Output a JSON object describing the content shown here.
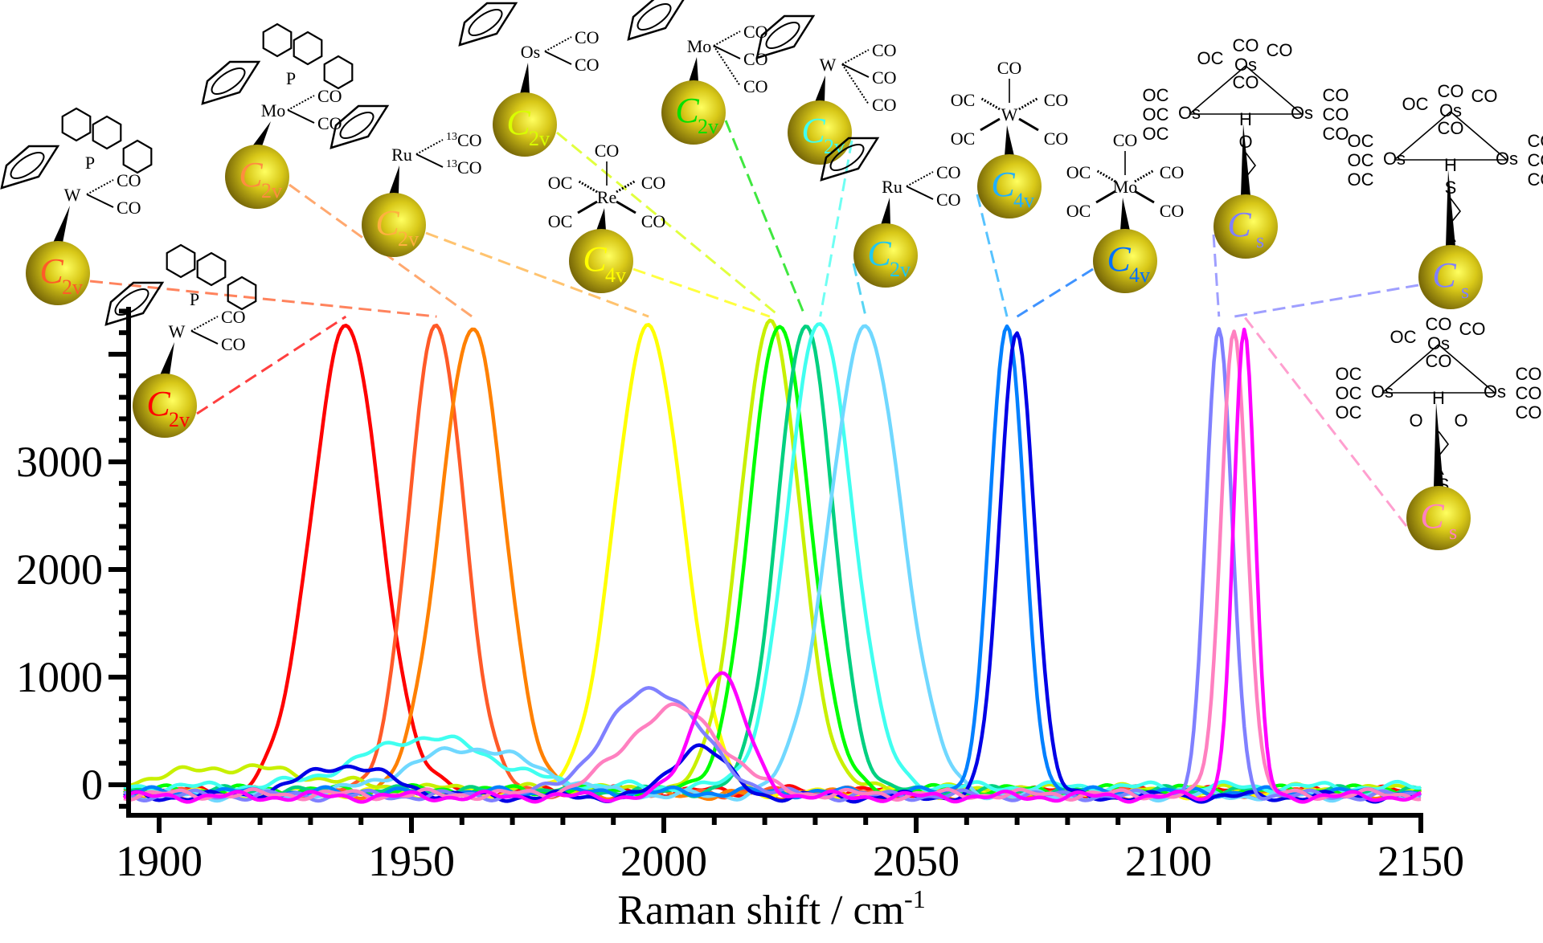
{
  "chart_data": {
    "type": "line",
    "title": "",
    "xlabel": "Raman shift / cm",
    "xlabel_superscript": "-1",
    "ylabel": "",
    "xlim": [
      1893,
      2150
    ],
    "ylim": [
      -350,
      4420
    ],
    "x_major_ticks": [
      1900,
      1950,
      2000,
      2050,
      2100,
      2150
    ],
    "x_minor_step": 10,
    "y_major_ticks": [
      0,
      1000,
      2000,
      3000
    ],
    "y_major_tick_marks": [
      0,
      1000,
      2000,
      3000,
      4000
    ],
    "y_minor_step": 200,
    "grid": false,
    "legend": "none",
    "series": [
      {
        "name": "CpW(CO)2(PCy3) on particle",
        "symmetry": "C2v",
        "color": "#ff0000",
        "peak_x": 1937,
        "peak_y": 4320,
        "fwhm": 16
      },
      {
        "name": "CpW(CO)2(PPh3) on particle",
        "symmetry": "C2v",
        "color": "#ff5a28",
        "peak_x": 1955,
        "peak_y": 4320,
        "fwhm": 13
      },
      {
        "name": "CpMo(CO)2(PPh3) on particle",
        "symmetry": "C2v",
        "color": "#ff8000",
        "peak_x": 1962,
        "peak_y": 4320,
        "fwhm": 15
      },
      {
        "name": "CpRu(13CO)2 on particle",
        "symmetry": "C2v",
        "color": "#ffff00",
        "peak_x": 1997,
        "peak_y": 4320,
        "fwhm": 16
      },
      {
        "name": "Re(CO)5 on particle",
        "symmetry": "C4v",
        "color": "#c8f000",
        "peak_x": 2021,
        "peak_y": 4320,
        "fwhm": 14
      },
      {
        "name": "CpOs(CO)2 on particle",
        "symmetry": "C2v",
        "color": "#00ff00",
        "peak_x": 2023,
        "peak_y": 4320,
        "fwhm": 14
      },
      {
        "name": "CpMo(CO)3 on particle",
        "symmetry": "C2v",
        "color": "#00d080",
        "peak_x": 2028,
        "peak_y": 4320,
        "fwhm": 13
      },
      {
        "name": "CpW(CO)3 on particle",
        "symmetry": "C2v",
        "color": "#40fff0",
        "peak_x": 2031,
        "peak_y": 4320,
        "fwhm": 15
      },
      {
        "name": "CpRu(CO)2 on particle",
        "symmetry": "C2v",
        "color": "#70d8ff",
        "peak_x": 2040,
        "peak_y": 4320,
        "fwhm": 17
      },
      {
        "name": "W(CO)5 on particle",
        "symmetry": "C4v",
        "color": "#0080ff",
        "peak_x": 2068,
        "peak_y": 4320,
        "fwhm": 8
      },
      {
        "name": "Mo(CO)5 on particle",
        "symmetry": "C4v",
        "color": "#0000e6",
        "peak_x": 2070,
        "peak_y": 4320,
        "fwhm": 8
      },
      {
        "name": "Os3(CO)10(μ-H)(μ-OCH2CH2S) on particle",
        "symmetry": "Cs",
        "color": "#8080ff",
        "peak_x": 2110,
        "peak_y": 4320,
        "fwhm": 6
      },
      {
        "name": "Os3(CO)10(μ-H)(μ-O2CCH2CH2S) on particle",
        "symmetry": "Cs",
        "color": "#ff80c0",
        "peak_x": 2113,
        "peak_y": 4320,
        "fwhm": 6
      },
      {
        "name": "Os3(CO)10(μ-H)(μ-SCH2CH2S) on particle",
        "symmetry": "Cs",
        "color": "#ff00ff",
        "peak_x": 2115,
        "peak_y": 4320,
        "fwhm": 5
      }
    ],
    "minor_bands": [
      {
        "series": "CpRu(CO)2 (light violet)",
        "color": "#8080ff",
        "peak_x": 1998,
        "peak_y": 1000,
        "fwhm": 22
      },
      {
        "series": "magenta",
        "color": "#ff00ff",
        "peak_x": 2011,
        "peak_y": 1150,
        "fwhm": 12
      },
      {
        "series": "pink",
        "color": "#ff80c0",
        "peak_x": 2002,
        "peak_y": 800,
        "fwhm": 22
      },
      {
        "series": "blue",
        "color": "#0000e6",
        "peak_x": 2007,
        "peak_y": 480,
        "fwhm": 12
      },
      {
        "series": "blue",
        "color": "#0000e6",
        "peak_x": 1937,
        "peak_y": 290,
        "fwhm": 20
      },
      {
        "series": "cyan",
        "color": "#40fff0",
        "peak_x": 1953,
        "peak_y": 460,
        "fwhm": 30
      },
      {
        "series": "light blue",
        "color": "#70d8ff",
        "peak_x": 1962,
        "peak_y": 440,
        "fwhm": 30
      },
      {
        "series": "yellow-green",
        "color": "#c8f000",
        "peak_x": 1915,
        "peak_y": 200,
        "fwhm": 35
      }
    ]
  },
  "molecules": [
    {
      "id": "cpw-pph3",
      "metal": "W",
      "ligands": [
        "P",
        "CO",
        "CO"
      ],
      "phosphine": "PPh3",
      "symmetry_main": "C",
      "symmetry_sub": "2v",
      "symmetry_color": "#ff5a28"
    },
    {
      "id": "cpw-pcy3",
      "metal": "W",
      "ligands": [
        "P",
        "CO",
        "CO"
      ],
      "phosphine": "PCy3",
      "symmetry_main": "C",
      "symmetry_sub": "2v",
      "symmetry_color": "#ff0000"
    },
    {
      "id": "cpmo-pph3",
      "metal": "Mo",
      "ligands": [
        "P",
        "CO",
        "CO"
      ],
      "phosphine": "PPh3",
      "symmetry_main": "C",
      "symmetry_sub": "2v",
      "symmetry_color": "#ff8c40"
    },
    {
      "id": "cpru-13co",
      "metal": "Ru",
      "ligands": [
        "13CO",
        "13CO"
      ],
      "symmetry_main": "C",
      "symmetry_sub": "2v",
      "symmetry_color": "#ffb040"
    },
    {
      "id": "cpos",
      "metal": "Os",
      "ligands": [
        "CO",
        "CO"
      ],
      "symmetry_main": "C",
      "symmetry_sub": "2v",
      "symmetry_color": "#d8ff00"
    },
    {
      "id": "re-co5",
      "metal": "Re",
      "ligands": [
        "CO",
        "OC",
        "CO",
        "OC",
        "CO"
      ],
      "symmetry_main": "C",
      "symmetry_sub": "4v",
      "symmetry_color": "#ffff00"
    },
    {
      "id": "cpmo-co3",
      "metal": "Mo",
      "ligands": [
        "CO",
        "CO",
        "CO"
      ],
      "symmetry_main": "C",
      "symmetry_sub": "2v",
      "symmetry_color": "#00e000"
    },
    {
      "id": "cpw-co3",
      "metal": "W",
      "ligands": [
        "CO",
        "CO",
        "CO"
      ],
      "symmetry_main": "C",
      "symmetry_sub": "2v",
      "symmetry_color": "#40fff0"
    },
    {
      "id": "cpru-co2",
      "metal": "Ru",
      "ligands": [
        "CO",
        "CO"
      ],
      "symmetry_main": "C",
      "symmetry_sub": "2v",
      "symmetry_color": "#20c8f0"
    },
    {
      "id": "w-co5",
      "metal": "W",
      "ligands": [
        "CO",
        "OC",
        "CO",
        "OC",
        "CO"
      ],
      "symmetry_main": "C",
      "symmetry_sub": "4v",
      "symmetry_color": "#20b0ff"
    },
    {
      "id": "mo-co5",
      "metal": "Mo",
      "ligands": [
        "CO",
        "OC",
        "CO",
        "OC",
        "CO"
      ],
      "symmetry_main": "C",
      "symmetry_sub": "4v",
      "symmetry_color": "#0070ff"
    },
    {
      "id": "os3-o",
      "metal": "Os",
      "bridge": "O",
      "linker": "S",
      "symmetry_main": "C",
      "symmetry_sub": "s",
      "symmetry_color": "#8080ff"
    },
    {
      "id": "os3-s",
      "metal": "Os",
      "bridge": "S",
      "linker": "S",
      "symmetry_main": "C",
      "symmetry_sub": "s",
      "symmetry_color": "#8080ff"
    },
    {
      "id": "os3-o2c",
      "metal": "Os",
      "bridge": "O O",
      "linker": "S",
      "symmetry_main": "C",
      "symmetry_sub": "s",
      "symmetry_color": "#ff80c0"
    }
  ],
  "labels": {
    "CO": "CO",
    "OC": "OC",
    "13CO_sup": "13",
    "H": "H",
    "O": "O",
    "S": "S",
    "P": "P"
  }
}
